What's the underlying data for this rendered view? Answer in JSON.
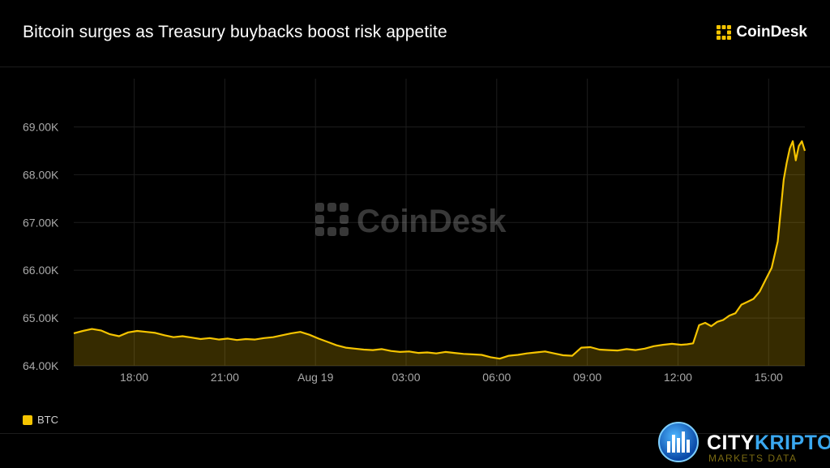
{
  "header": {
    "title": "Bitcoin surges as Treasury buybacks boost risk appetite",
    "brand": "CoinDesk"
  },
  "watermark": {
    "text": "CoinDesk"
  },
  "partner": {
    "name_part1": "CITY",
    "name_part2": "KRIPTO",
    "tagline": "MARKETS DATA"
  },
  "colors": {
    "accent": "#f5c400",
    "background": "#000000",
    "grid": "#1d1d1d",
    "axis_text": "#a9a9a9"
  },
  "chart_data": {
    "type": "area",
    "title": "Bitcoin surges as Treasury buybacks boost risk appetite",
    "xlabel": "",
    "ylabel": "",
    "ylim": [
      64000,
      69500
    ],
    "y_ticks": [
      {
        "value": 64000,
        "label": "64.00K"
      },
      {
        "value": 65000,
        "label": "65.00K"
      },
      {
        "value": 66000,
        "label": "66.00K"
      },
      {
        "value": 67000,
        "label": "67.00K"
      },
      {
        "value": 68000,
        "label": "68.00K"
      },
      {
        "value": 69000,
        "label": "69.00K"
      }
    ],
    "x_unit": "hours since Aug 18 16:00",
    "xlim": [
      0.0,
      24.2
    ],
    "x_ticks": [
      {
        "value": 2,
        "label": "18:00"
      },
      {
        "value": 5,
        "label": "21:00"
      },
      {
        "value": 8,
        "label": "Aug 19"
      },
      {
        "value": 11,
        "label": "03:00"
      },
      {
        "value": 14,
        "label": "06:00"
      },
      {
        "value": 17,
        "label": "09:00"
      },
      {
        "value": 20,
        "label": "12:00"
      },
      {
        "value": 23,
        "label": "15:00"
      }
    ],
    "grid": true,
    "legend": {
      "position": "bottom-left",
      "entries": [
        "BTC"
      ]
    },
    "series": [
      {
        "name": "BTC",
        "color": "#f5c400",
        "x": [
          0.0,
          0.3,
          0.6,
          0.9,
          1.2,
          1.5,
          1.8,
          2.1,
          2.4,
          2.7,
          3.0,
          3.3,
          3.6,
          3.9,
          4.2,
          4.5,
          4.8,
          5.1,
          5.4,
          5.7,
          6.0,
          6.3,
          6.6,
          6.9,
          7.2,
          7.5,
          7.8,
          8.1,
          8.4,
          8.7,
          9.0,
          9.3,
          9.6,
          9.9,
          10.2,
          10.5,
          10.8,
          11.1,
          11.4,
          11.7,
          12.0,
          12.3,
          12.6,
          12.9,
          13.2,
          13.5,
          13.8,
          14.1,
          14.4,
          14.7,
          15.0,
          15.3,
          15.6,
          15.9,
          16.2,
          16.5,
          16.8,
          17.1,
          17.4,
          17.7,
          18.0,
          18.3,
          18.6,
          18.9,
          19.2,
          19.5,
          19.8,
          20.1,
          20.3,
          20.5,
          20.7,
          20.9,
          21.1,
          21.3,
          21.5,
          21.7,
          21.9,
          22.1,
          22.3,
          22.5,
          22.7,
          22.9,
          23.1,
          23.3,
          23.4,
          23.5,
          23.6,
          23.7,
          23.8,
          23.9,
          24.0,
          24.1,
          24.2
        ],
        "values": [
          64680,
          64730,
          64770,
          64740,
          64660,
          64620,
          64700,
          64730,
          64710,
          64690,
          64640,
          64600,
          64620,
          64590,
          64560,
          64580,
          64550,
          64570,
          64540,
          64560,
          64550,
          64580,
          64600,
          64640,
          64680,
          64710,
          64650,
          64570,
          64500,
          64430,
          64380,
          64360,
          64340,
          64330,
          64350,
          64310,
          64290,
          64300,
          64270,
          64280,
          64260,
          64290,
          64270,
          64250,
          64240,
          64230,
          64180,
          64150,
          64210,
          64230,
          64260,
          64280,
          64300,
          64260,
          64220,
          64210,
          64380,
          64390,
          64340,
          64330,
          64320,
          64350,
          64330,
          64360,
          64410,
          64440,
          64460,
          64440,
          64450,
          64470,
          64850,
          64900,
          64830,
          64920,
          64960,
          65050,
          65100,
          65280,
          65340,
          65400,
          65550,
          65800,
          66050,
          66600,
          67250,
          67900,
          68250,
          68550,
          68700,
          68300,
          68600,
          68700,
          68500
        ]
      }
    ]
  }
}
